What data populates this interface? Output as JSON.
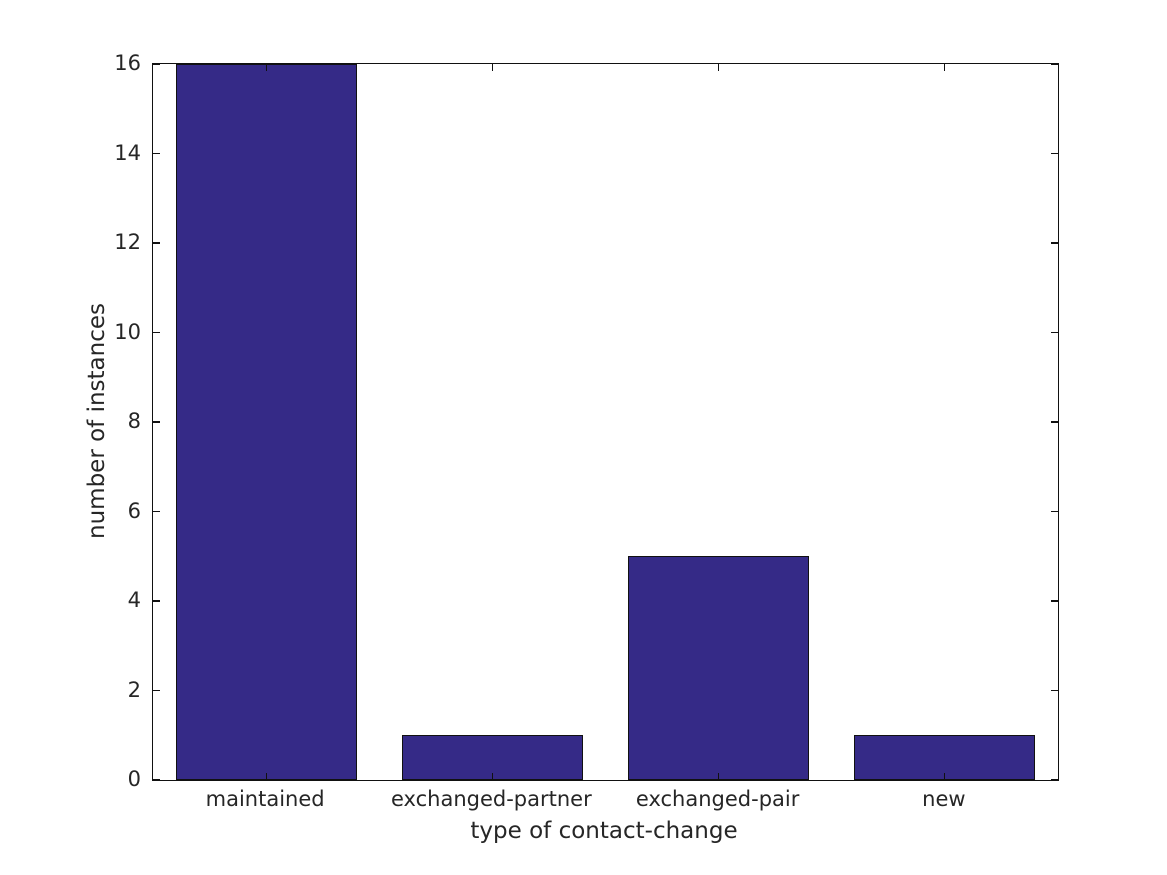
{
  "figure": {
    "background": "#ffffff",
    "text_color": "#262626",
    "axis_color": "#111111"
  },
  "chart_data": {
    "type": "bar",
    "title": "",
    "categories": [
      "maintained",
      "exchanged-partner",
      "exchanged-pair",
      "new"
    ],
    "values": [
      16,
      1,
      5,
      1
    ],
    "xlabel": "type of contact-change",
    "ylabel": "number of instances",
    "ylim": [
      0,
      16
    ],
    "yticks": [
      0,
      2,
      4,
      6,
      8,
      10,
      12,
      14,
      16
    ],
    "bar_color": "#352A87",
    "bar_edge_color": "#111111",
    "bar_width_fraction": 0.8,
    "grid": false,
    "legend_position": null,
    "tick_direction": "in",
    "boxed_axes": true
  }
}
